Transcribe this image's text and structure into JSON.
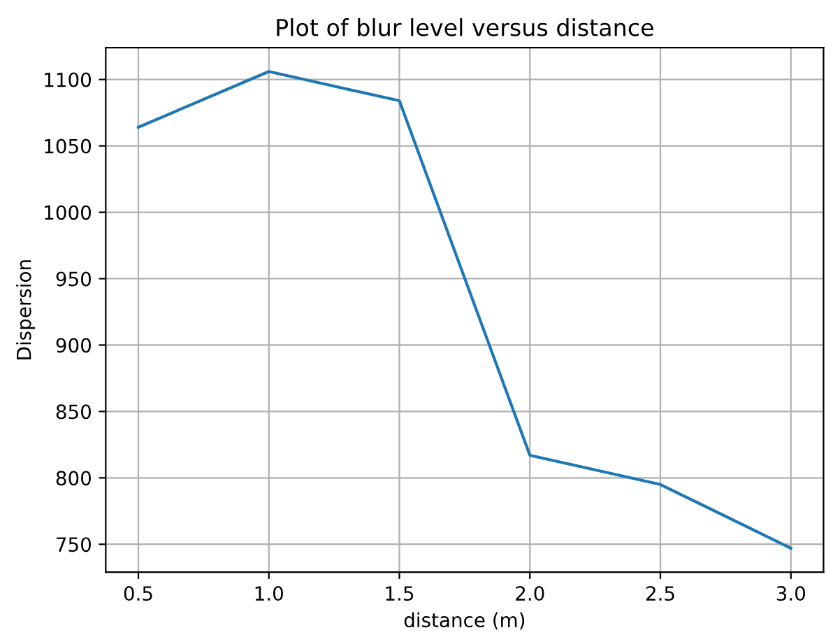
{
  "chart_data": {
    "type": "line",
    "title": "Plot of blur level versus distance",
    "xlabel": "distance (m)",
    "ylabel": "Dispersion",
    "x": [
      0.5,
      1.0,
      1.5,
      2.0,
      2.5,
      3.0
    ],
    "series": [
      {
        "color": "#1f77b4",
        "values": [
          1064,
          1106,
          1084,
          817,
          795,
          747
        ]
      }
    ],
    "xlim": [
      0.375,
      3.125
    ],
    "xticks": [
      0.5,
      {
        "value": 1,
        "label": "1.0"
      },
      1.5,
      {
        "value": 2,
        "label": "2.0"
      },
      2.5,
      {
        "value": 3,
        "label": "3.0"
      }
    ],
    "ylim": [
      729,
      1124
    ],
    "yticks": [
      750,
      800,
      850,
      900,
      950,
      1000,
      1050,
      1100
    ],
    "grid": true,
    "marker": "none",
    "line_style": "solid"
  }
}
